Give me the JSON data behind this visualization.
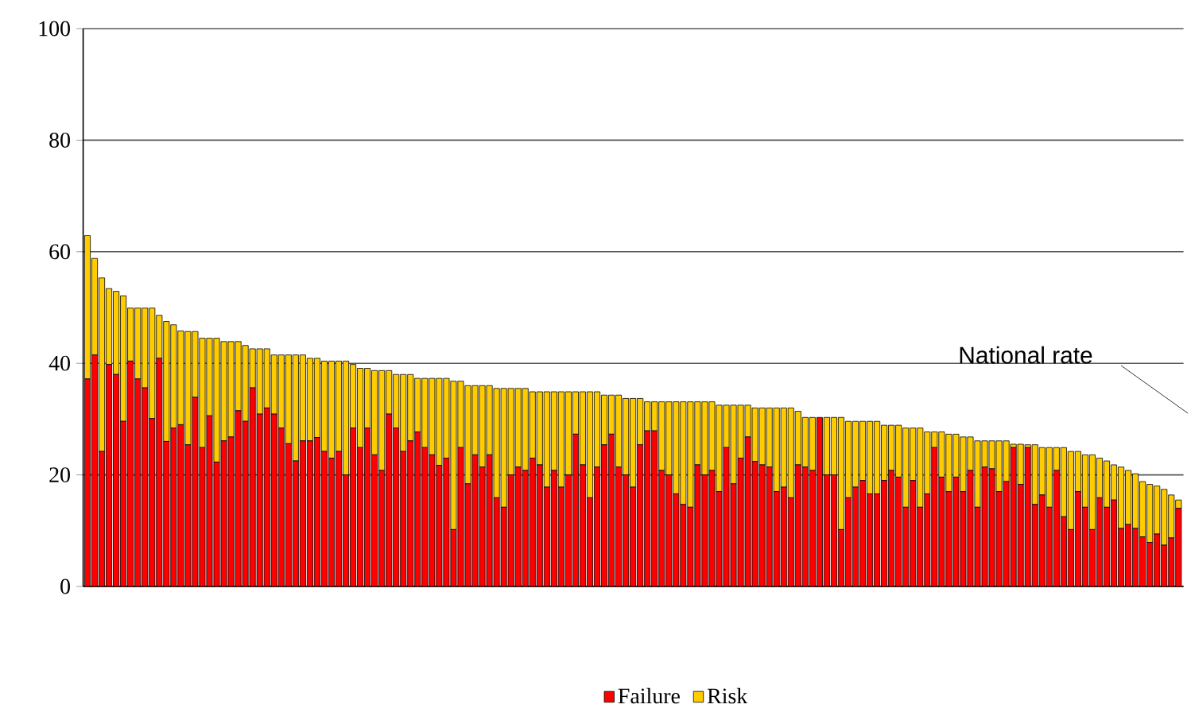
{
  "chart_data": {
    "type": "bar",
    "stacked": true,
    "categories": [
      null,
      null,
      null,
      null,
      null,
      null,
      null,
      null,
      null,
      null,
      null,
      null,
      null,
      null,
      null,
      null,
      null,
      null,
      null,
      null,
      null,
      null,
      null,
      null,
      null,
      null,
      null,
      null,
      null,
      null,
      null,
      null,
      null,
      null,
      null,
      null,
      null,
      null,
      null,
      null,
      null,
      null,
      null,
      null,
      null,
      null,
      null,
      null,
      null,
      null,
      null,
      null,
      null,
      null,
      null,
      null,
      null,
      null,
      null,
      null,
      null,
      null,
      null,
      null,
      null,
      null,
      null,
      null,
      null,
      null,
      null,
      null,
      null,
      null,
      null,
      null,
      null,
      null,
      null,
      null,
      null,
      null,
      null,
      null,
      null,
      null,
      null,
      null,
      null,
      null,
      null,
      null,
      null,
      null,
      null,
      null,
      null,
      null,
      null,
      null,
      null,
      null,
      null,
      null,
      null,
      null,
      null,
      null,
      null,
      null,
      null,
      null,
      null,
      null,
      null,
      null,
      null,
      null,
      null,
      null,
      null,
      null,
      null,
      null,
      null,
      null,
      null,
      null,
      null,
      null,
      null,
      null,
      null,
      null,
      null,
      null,
      null,
      null,
      null,
      null,
      null,
      null,
      null,
      null,
      null,
      null,
      null,
      null,
      null,
      null,
      null,
      null,
      null
    ],
    "series": [
      {
        "name": "Failure",
        "color": "#ff0000",
        "values": [
          37.2,
          41.5,
          24.2,
          39.8,
          38.0,
          29.6,
          40.4,
          37.2,
          35.6,
          30.1,
          40.9,
          26.0,
          28.4,
          29.0,
          25.4,
          33.9,
          24.9,
          30.6,
          22.3,
          26.1,
          26.8,
          31.5,
          29.6,
          35.6,
          30.9,
          32.0,
          30.9,
          28.4,
          25.6,
          22.5,
          26.1,
          26.1,
          26.7,
          24.2,
          23.0,
          24.2,
          20.0,
          28.4,
          24.9,
          28.4,
          23.6,
          20.8,
          30.9,
          28.4,
          24.2,
          26.1,
          27.7,
          24.9,
          23.6,
          21.7,
          23.0,
          10.2,
          24.9,
          18.4,
          23.6,
          21.4,
          23.6,
          15.9,
          14.2,
          20.0,
          21.4,
          20.8,
          23.0,
          21.8,
          17.8,
          20.8,
          17.8,
          20.0,
          27.3,
          21.8,
          15.9,
          21.4,
          25.4,
          27.3,
          21.4,
          20.0,
          17.8,
          25.4,
          27.9,
          27.9,
          20.8,
          20.0,
          16.6,
          14.7,
          14.2,
          21.8,
          20.0,
          20.8,
          17.0,
          24.9,
          18.4,
          23.0,
          26.8,
          22.4,
          21.8,
          21.4,
          17.0,
          17.8,
          15.9,
          21.8,
          21.4,
          20.8,
          30.3,
          20.0,
          20.0,
          10.2,
          15.9,
          17.8,
          19.0,
          16.6,
          16.6,
          19.0,
          20.8,
          19.6,
          14.2,
          19.0,
          14.2,
          16.6,
          24.9,
          19.6,
          17.0,
          19.6,
          17.0,
          20.8,
          14.2,
          21.4,
          21.1,
          17.0,
          18.8,
          24.9,
          18.3,
          24.9,
          14.7,
          16.4,
          14.2,
          20.8,
          12.5,
          10.2,
          17.0,
          14.2,
          10.2,
          15.9,
          14.2,
          15.5,
          10.4,
          11.1,
          10.4,
          8.9,
          7.9,
          9.4,
          7.4,
          8.7,
          14.0
        ]
      },
      {
        "name": "Risk",
        "color": "#ffcc00",
        "values": [
          25.7,
          17.3,
          31.1,
          13.6,
          14.9,
          22.5,
          9.5,
          12.7,
          14.3,
          19.8,
          7.7,
          21.5,
          18.5,
          16.8,
          20.3,
          11.8,
          19.6,
          13.9,
          22.2,
          17.8,
          17.1,
          12.4,
          13.6,
          7.0,
          11.7,
          10.6,
          10.6,
          13.1,
          15.9,
          19.0,
          15.4,
          14.8,
          14.2,
          16.2,
          17.4,
          16.2,
          20.4,
          11.4,
          14.2,
          10.7,
          15.1,
          17.9,
          7.8,
          9.6,
          13.8,
          11.9,
          9.6,
          12.4,
          13.7,
          15.6,
          14.3,
          26.6,
          11.9,
          17.6,
          12.4,
          14.6,
          12.4,
          19.6,
          21.3,
          15.5,
          14.1,
          14.7,
          11.9,
          13.1,
          17.1,
          14.1,
          17.1,
          14.9,
          7.6,
          13.1,
          19.0,
          13.5,
          8.9,
          7.0,
          12.9,
          13.7,
          15.9,
          8.3,
          5.2,
          5.2,
          12.3,
          13.1,
          16.5,
          18.4,
          18.9,
          11.3,
          13.1,
          12.3,
          15.5,
          7.6,
          14.1,
          9.5,
          5.7,
          9.6,
          10.2,
          10.6,
          15.0,
          14.2,
          16.1,
          9.6,
          8.9,
          9.5,
          0,
          10.3,
          10.3,
          20.1,
          13.7,
          11.8,
          10.6,
          13.0,
          13.0,
          9.9,
          8.1,
          9.3,
          14.2,
          9.4,
          14.2,
          11.1,
          2.8,
          8.1,
          10.3,
          7.7,
          9.8,
          6.0,
          11.9,
          4.7,
          5.0,
          9.1,
          7.3,
          0.6,
          7.2,
          0.5,
          10.7,
          8.5,
          10.7,
          4.1,
          12.4,
          14.0,
          7.2,
          9.4,
          13.4,
          7.1,
          8.3,
          6.3,
          11.0,
          9.7,
          9.8,
          9.9,
          10.4,
          8.6,
          10.0,
          7.7,
          1.5
        ]
      }
    ],
    "ylim": [
      0,
      100
    ],
    "yticks": [
      0,
      20,
      40,
      60,
      80,
      100
    ],
    "grid": "y",
    "legend": "bottom",
    "annotations": [
      "National rate"
    ]
  }
}
